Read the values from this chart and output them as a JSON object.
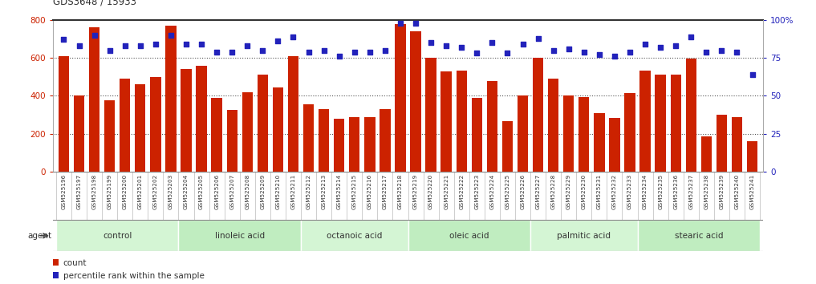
{
  "title": "GDS3648 / 15933",
  "samples": [
    "GSM525196",
    "GSM525197",
    "GSM525198",
    "GSM525199",
    "GSM525200",
    "GSM525201",
    "GSM525202",
    "GSM525203",
    "GSM525204",
    "GSM525205",
    "GSM525206",
    "GSM525207",
    "GSM525208",
    "GSM525209",
    "GSM525210",
    "GSM525211",
    "GSM525212",
    "GSM525213",
    "GSM525214",
    "GSM525215",
    "GSM525216",
    "GSM525217",
    "GSM525218",
    "GSM525219",
    "GSM525220",
    "GSM525221",
    "GSM525222",
    "GSM525223",
    "GSM525224",
    "GSM525225",
    "GSM525226",
    "GSM525227",
    "GSM525228",
    "GSM525229",
    "GSM525230",
    "GSM525231",
    "GSM525232",
    "GSM525233",
    "GSM525234",
    "GSM525235",
    "GSM525236",
    "GSM525237",
    "GSM525238",
    "GSM525239",
    "GSM525240",
    "GSM525241"
  ],
  "counts": [
    610,
    400,
    760,
    375,
    490,
    460,
    500,
    770,
    540,
    560,
    390,
    325,
    420,
    510,
    445,
    610,
    355,
    330,
    280,
    290,
    290,
    330,
    780,
    740,
    600,
    530,
    535,
    390,
    480,
    265,
    400,
    600,
    490,
    400,
    395,
    310,
    285,
    415,
    535,
    510,
    510,
    595,
    185,
    300,
    290,
    160
  ],
  "percentile": [
    87,
    83,
    90,
    80,
    83,
    83,
    84,
    90,
    84,
    84,
    79,
    79,
    83,
    80,
    86,
    89,
    79,
    80,
    76,
    79,
    79,
    80,
    98,
    98,
    85,
    83,
    82,
    78,
    85,
    78,
    84,
    88,
    80,
    81,
    79,
    77,
    76,
    79,
    84,
    82,
    83,
    89,
    79,
    80,
    79,
    64
  ],
  "groups": [
    {
      "label": "control",
      "start": 0,
      "end": 7
    },
    {
      "label": "linoleic acid",
      "start": 8,
      "end": 15
    },
    {
      "label": "octanoic acid",
      "start": 16,
      "end": 22
    },
    {
      "label": "oleic acid",
      "start": 23,
      "end": 30
    },
    {
      "label": "palmitic acid",
      "start": 31,
      "end": 37
    },
    {
      "label": "stearic acid",
      "start": 38,
      "end": 45
    }
  ],
  "bar_color": "#cc2200",
  "dot_color": "#2222bb",
  "ylim_left": [
    0,
    800
  ],
  "ylim_right": [
    0,
    100
  ],
  "yticks_left": [
    0,
    200,
    400,
    600,
    800
  ],
  "yticks_right": [
    0,
    25,
    50,
    75,
    100
  ],
  "grid_lines": [
    200,
    400,
    600
  ],
  "group_shades": [
    "#d4f5d4",
    "#c0edc0",
    "#d4f5d4",
    "#c0edc0",
    "#d4f5d4",
    "#c0edc0"
  ],
  "xtick_bg": "#d8d8d8",
  "border_color": "#999999"
}
